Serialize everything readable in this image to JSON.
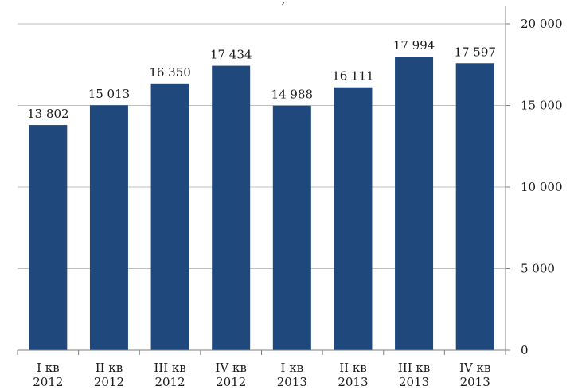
{
  "chart_data": {
    "type": "bar",
    "title_fragment": ", ",
    "categories": [
      [
        "I кв",
        "2012"
      ],
      [
        "II кв",
        "2012"
      ],
      [
        "III кв",
        "2012"
      ],
      [
        "IV кв",
        "2012"
      ],
      [
        "I кв",
        "2013"
      ],
      [
        "II кв",
        "2013"
      ],
      [
        "III кв",
        "2013"
      ],
      [
        "IV кв",
        "2013"
      ]
    ],
    "values": [
      13802,
      15013,
      16350,
      17434,
      14988,
      16111,
      17994,
      17597
    ],
    "value_labels": [
      "13 802",
      "15 013",
      "16 350",
      "17 434",
      "14 988",
      "16 111",
      "17 994",
      "17 597"
    ],
    "yticks": [
      0,
      5000,
      10000,
      15000,
      20000
    ],
    "ytick_labels": [
      "0",
      "5 000",
      "10 000",
      "15 000",
      "20 000"
    ],
    "ylim": [
      0,
      20000
    ],
    "yaxis_position": "right",
    "grid": true,
    "bar_color": "#1f497d",
    "gridline_color": "#bfbfbf"
  }
}
